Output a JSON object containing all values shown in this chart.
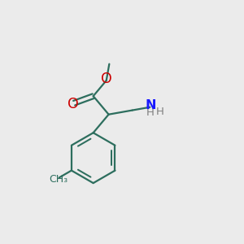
{
  "background_color": "#ebebeb",
  "bond_color": "#2d6e5e",
  "oxygen_color": "#cc0000",
  "nitrogen_color": "#1a1aff",
  "hydrogen_color": "#808080",
  "line_width": 1.6,
  "font_size_atoms": 10.5,
  "fig_size": [
    3.0,
    3.0
  ],
  "dpi": 100,
  "xlim": [
    0,
    10
  ],
  "ylim": [
    0,
    10
  ]
}
